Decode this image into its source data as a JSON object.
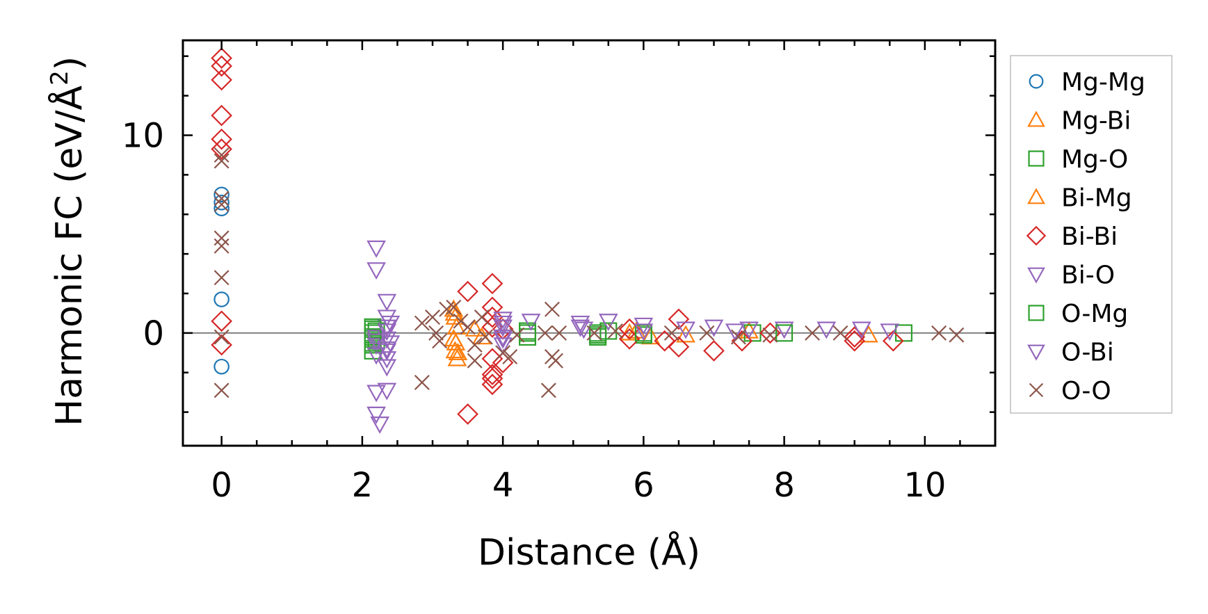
{
  "chart_data": {
    "type": "scatter",
    "title": "",
    "xlabel": "Distance (Å)",
    "ylabel_main": "Harmonic FC (eV/Å",
    "ylabel_sup": "2",
    "ylabel_end": ")",
    "xlim": [
      -0.55,
      11.0
    ],
    "ylim": [
      -5.7,
      14.8
    ],
    "xticks": [
      0,
      2,
      4,
      6,
      8,
      10
    ],
    "xtick_labels": [
      "0",
      "2",
      "4",
      "6",
      "8",
      "10"
    ],
    "yticks": [
      0,
      10
    ],
    "ytick_labels": [
      "0",
      "10"
    ],
    "zero_line": true,
    "legend_position": "outside-right",
    "series": [
      {
        "name": "Mg-Mg",
        "color": "#1f77b4",
        "marker": "circle",
        "points": [
          [
            0,
            7.0
          ],
          [
            0,
            6.6
          ],
          [
            0,
            6.3
          ],
          [
            0,
            1.7
          ],
          [
            0,
            -1.7
          ]
        ]
      },
      {
        "name": "Mg-Bi",
        "color": "#ff7f0e",
        "marker": "triangle-up",
        "points": [
          [
            3.3,
            1.2
          ],
          [
            3.32,
            0.8
          ],
          [
            3.34,
            0.3
          ],
          [
            3.3,
            -0.3
          ],
          [
            3.32,
            -0.9
          ],
          [
            3.35,
            -1.3
          ],
          [
            3.6,
            0.2
          ],
          [
            3.7,
            -0.2
          ],
          [
            5.8,
            0.0
          ],
          [
            6.1,
            -0.2
          ],
          [
            7.5,
            0.1
          ],
          [
            9.2,
            -0.1
          ]
        ]
      },
      {
        "name": "Mg-O",
        "color": "#2ca02c",
        "marker": "square",
        "points": [
          [
            2.15,
            0.3
          ],
          [
            2.15,
            0.0
          ],
          [
            2.15,
            -0.3
          ],
          [
            2.15,
            -0.6
          ],
          [
            2.15,
            -0.9
          ],
          [
            2.2,
            0.1
          ],
          [
            2.2,
            -0.4
          ],
          [
            4.35,
            0.1
          ],
          [
            4.35,
            -0.2
          ],
          [
            5.35,
            0.0
          ],
          [
            5.35,
            -0.2
          ],
          [
            5.5,
            0.1
          ],
          [
            6.0,
            -0.1
          ],
          [
            7.55,
            0.0
          ],
          [
            9.7,
            0.0
          ]
        ]
      },
      {
        "name": "Bi-Mg",
        "color": "#ff7f0e",
        "marker": "triangle-up",
        "points": [
          [
            3.31,
            1.0
          ],
          [
            3.33,
            -0.5
          ],
          [
            3.36,
            -1.0
          ],
          [
            5.9,
            0.1
          ],
          [
            6.6,
            -0.1
          ]
        ]
      },
      {
        "name": "Bi-Bi",
        "color": "#d62728",
        "marker": "diamond",
        "points": [
          [
            0,
            13.9
          ],
          [
            0,
            13.5
          ],
          [
            0,
            12.8
          ],
          [
            0,
            11.0
          ],
          [
            0,
            9.8
          ],
          [
            0,
            9.3
          ],
          [
            0,
            0.6
          ],
          [
            0,
            -0.6
          ],
          [
            3.5,
            2.1
          ],
          [
            3.5,
            -4.1
          ],
          [
            3.85,
            2.5
          ],
          [
            3.85,
            1.3
          ],
          [
            3.85,
            0.8
          ],
          [
            3.85,
            -1.3
          ],
          [
            3.85,
            -2.1
          ],
          [
            3.85,
            -2.6
          ],
          [
            3.85,
            -2.3
          ],
          [
            3.85,
            0.3
          ],
          [
            4.0,
            -1.5
          ],
          [
            4.0,
            0.2
          ],
          [
            5.8,
            0.2
          ],
          [
            5.8,
            -0.3
          ],
          [
            6.3,
            -0.4
          ],
          [
            6.5,
            0.7
          ],
          [
            6.5,
            -0.7
          ],
          [
            7.0,
            -0.9
          ],
          [
            7.4,
            -0.4
          ],
          [
            7.8,
            0.0
          ],
          [
            9.0,
            -0.2
          ],
          [
            9.0,
            -0.4
          ],
          [
            9.55,
            -0.4
          ]
        ]
      },
      {
        "name": "Bi-O",
        "color": "#9467bd",
        "marker": "triangle-down",
        "points": [
          [
            2.2,
            4.3
          ],
          [
            2.2,
            3.2
          ],
          [
            2.2,
            -0.2
          ],
          [
            2.2,
            -0.6
          ],
          [
            2.2,
            -1.1
          ],
          [
            2.2,
            -3.0
          ],
          [
            2.2,
            -4.1
          ],
          [
            2.25,
            -4.6
          ],
          [
            2.35,
            1.6
          ],
          [
            2.35,
            0.8
          ],
          [
            2.35,
            0.3
          ],
          [
            2.35,
            -0.3
          ],
          [
            2.35,
            -0.8
          ],
          [
            2.35,
            -1.3
          ],
          [
            2.35,
            -1.7
          ],
          [
            2.35,
            -2.9
          ],
          [
            2.4,
            0.5
          ],
          [
            2.4,
            -0.5
          ],
          [
            4.0,
            0.7
          ],
          [
            4.0,
            0.3
          ],
          [
            4.0,
            -0.3
          ],
          [
            4.0,
            -0.6
          ],
          [
            4.4,
            0.6
          ],
          [
            5.1,
            0.5
          ],
          [
            5.15,
            0.2
          ],
          [
            5.5,
            0.6
          ],
          [
            6.0,
            0.4
          ],
          [
            6.6,
            0.2
          ],
          [
            7.0,
            0.3
          ],
          [
            7.5,
            0.2
          ],
          [
            8.0,
            0.2
          ],
          [
            8.6,
            0.2
          ],
          [
            9.1,
            0.2
          ],
          [
            9.5,
            0.1
          ]
        ]
      },
      {
        "name": "O-Mg",
        "color": "#2ca02c",
        "marker": "square",
        "points": [
          [
            2.15,
            0.2
          ],
          [
            2.15,
            -0.2
          ],
          [
            2.15,
            -0.5
          ],
          [
            4.35,
            0.0
          ],
          [
            5.35,
            -0.1
          ],
          [
            6.0,
            0.0
          ],
          [
            8.0,
            0.0
          ]
        ]
      },
      {
        "name": "O-Bi",
        "color": "#9467bd",
        "marker": "triangle-down",
        "points": [
          [
            2.2,
            -0.4
          ],
          [
            2.35,
            0.1
          ],
          [
            2.35,
            -0.9
          ],
          [
            4.0,
            0.5
          ],
          [
            4.0,
            -0.2
          ],
          [
            5.1,
            0.3
          ],
          [
            6.0,
            0.1
          ],
          [
            7.3,
            0.1
          ]
        ]
      },
      {
        "name": "O-O",
        "color": "#8c564b",
        "marker": "x",
        "points": [
          [
            0,
            9.0
          ],
          [
            0,
            8.7
          ],
          [
            0,
            6.8
          ],
          [
            0,
            6.5
          ],
          [
            0,
            4.8
          ],
          [
            0,
            4.4
          ],
          [
            0,
            2.8
          ],
          [
            0,
            -0.2
          ],
          [
            0,
            -2.9
          ],
          [
            2.85,
            0.5
          ],
          [
            2.85,
            -2.5
          ],
          [
            3.0,
            0.8
          ],
          [
            3.05,
            0.0
          ],
          [
            3.1,
            -0.4
          ],
          [
            3.2,
            1.2
          ],
          [
            3.3,
            1.3
          ],
          [
            3.4,
            0.6
          ],
          [
            3.5,
            0.3
          ],
          [
            3.6,
            -0.6
          ],
          [
            3.6,
            -1.4
          ],
          [
            3.7,
            0.8
          ],
          [
            3.75,
            -0.2
          ],
          [
            4.0,
            -1.0
          ],
          [
            4.1,
            -1.2
          ],
          [
            4.2,
            -0.1
          ],
          [
            4.6,
            0.0
          ],
          [
            4.65,
            -2.9
          ],
          [
            4.7,
            1.2
          ],
          [
            4.7,
            -1.2
          ],
          [
            4.75,
            -1.4
          ],
          [
            4.8,
            0.0
          ],
          [
            5.3,
            0.0
          ],
          [
            5.6,
            0.1
          ],
          [
            6.4,
            0.0
          ],
          [
            6.9,
            0.0
          ],
          [
            7.35,
            -0.2
          ],
          [
            7.8,
            -0.1
          ],
          [
            8.4,
            0.0
          ],
          [
            8.8,
            0.0
          ],
          [
            10.2,
            0.0
          ],
          [
            10.45,
            -0.1
          ]
        ]
      }
    ]
  }
}
